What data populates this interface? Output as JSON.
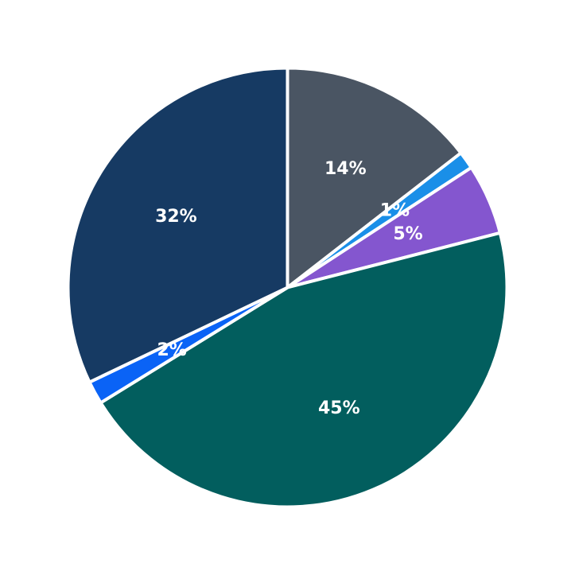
{
  "chart_data": {
    "type": "pie",
    "title": "",
    "start": "12 o'clock",
    "direction": "clockwise",
    "legend": "none",
    "slices": [
      {
        "value": 14.5,
        "label": "14%",
        "color": "#4a5563"
      },
      {
        "value": 1.3,
        "label": "1%",
        "color": "#1a8fe8"
      },
      {
        "value": 5.2,
        "label": "5%",
        "color": "#8456cf"
      },
      {
        "value": 45.2,
        "label": "45%",
        "color": "#025e5e"
      },
      {
        "value": 1.7,
        "label": "2%",
        "color": "#0a63f6"
      },
      {
        "value": 32.1,
        "label": "32%",
        "color": "#163a63"
      }
    ]
  }
}
